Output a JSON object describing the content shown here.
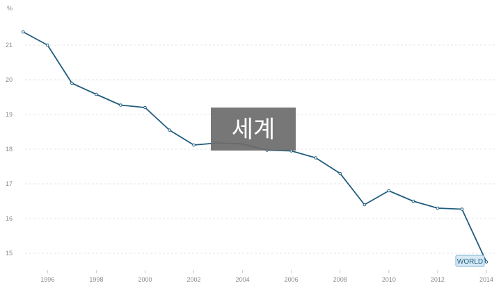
{
  "chart_data": {
    "type": "line",
    "y_unit_label": "%",
    "x": [
      1995,
      1996,
      1997,
      1998,
      1999,
      2000,
      2001,
      2002,
      2003,
      2004,
      2005,
      2006,
      2007,
      2008,
      2009,
      2010,
      2011,
      2012,
      2013,
      2014
    ],
    "series": [
      {
        "name": "",
        "values": [
          21.38,
          21.0,
          19.9,
          19.58,
          19.27,
          19.2,
          18.55,
          18.12,
          18.18,
          18.15,
          17.97,
          17.95,
          17.75,
          17.3,
          16.4,
          16.8,
          16.5,
          16.3,
          16.27,
          14.75
        ]
      }
    ],
    "x_ticks": [
      1996,
      1998,
      2000,
      2002,
      2004,
      2006,
      2008,
      2010,
      2012,
      2014
    ],
    "y_ticks": [
      15,
      16,
      17,
      18,
      19,
      20,
      21
    ],
    "xlim": [
      1994.05,
      2014.6
    ],
    "ylim": [
      14.5,
      21.9
    ],
    "grid": true,
    "end_label": "WORLD",
    "overlay_text": "세계",
    "colors": {
      "line": "#1f5c7d",
      "grid": "#e6e6e6",
      "tick": "#8a8a8a"
    }
  }
}
